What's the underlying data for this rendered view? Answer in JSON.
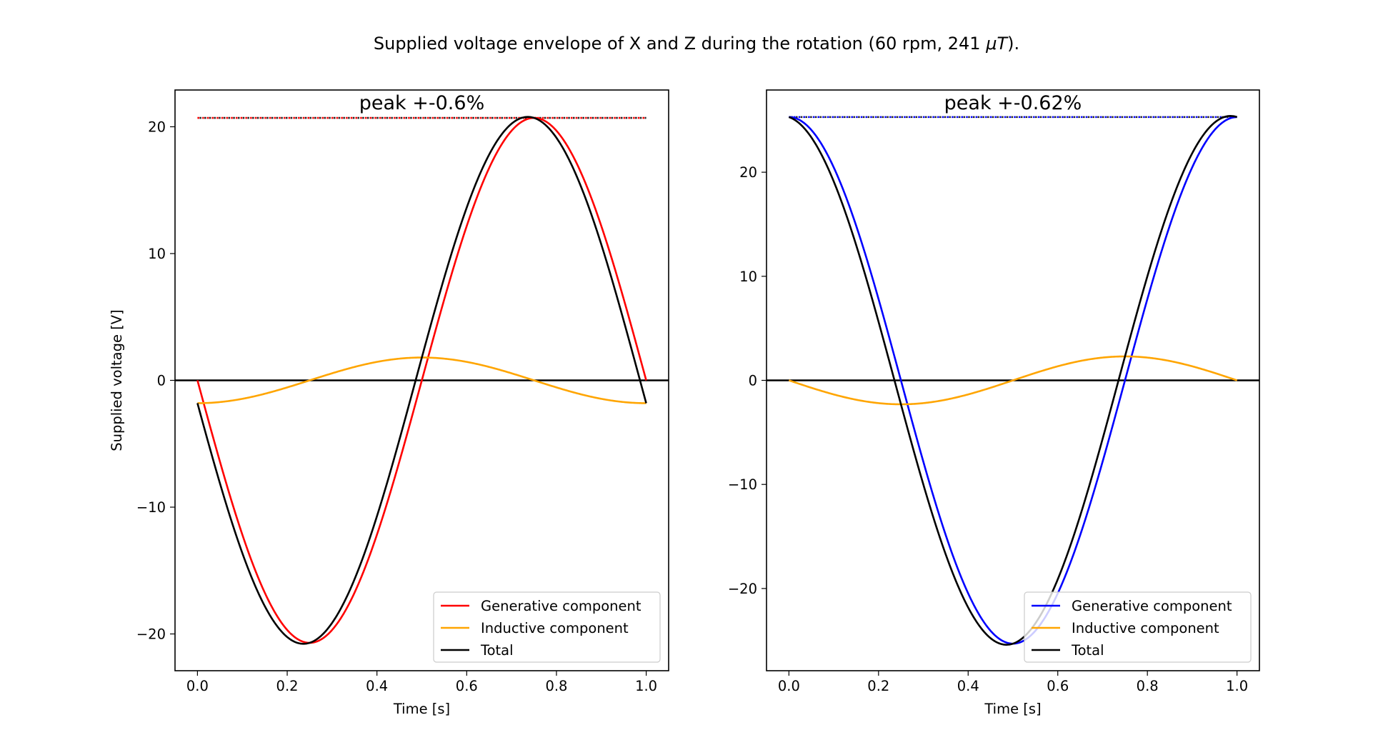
{
  "figure": {
    "suptitle_prefix": "Supplied voltage envelope of X and Z during the rotation (60 rpm, 241 ",
    "suptitle_unit": "μT",
    "suptitle_suffix": ")."
  },
  "chart_data": [
    {
      "type": "line",
      "xlabel": "Time [s]",
      "ylabel": "Supplied voltage [V]",
      "xlim": [
        -0.05,
        1.05
      ],
      "ylim": [
        -22.9,
        22.9
      ],
      "xticks": [
        0.0,
        0.2,
        0.4,
        0.6,
        0.8,
        1.0
      ],
      "xtick_labels": [
        "0.0",
        "0.2",
        "0.4",
        "0.6",
        "0.8",
        "1.0"
      ],
      "yticks": [
        -20,
        -10,
        0,
        10,
        20
      ],
      "ytick_labels": [
        "−20",
        "−10",
        "0",
        "10",
        "20"
      ],
      "grid": false,
      "legend_position": "lower-right",
      "annotation": "peak +-0.6%",
      "peak_value": 20.7,
      "zero_line": true,
      "series": [
        {
          "name": "Generative component",
          "color": "#ff0000",
          "function": "-A*sin(2*pi*t)",
          "amplitude": 20.7,
          "t_range": [
            0,
            1
          ]
        },
        {
          "name": "Inductive component",
          "color": "#ffa500",
          "function": "-A*cos(2*pi*t)",
          "amplitude": 1.8,
          "t_range": [
            0,
            1
          ]
        },
        {
          "name": "Total",
          "color": "#000000",
          "function": "generative + inductive",
          "t_range": [
            0,
            1
          ]
        }
      ]
    },
    {
      "type": "line",
      "xlabel": "Time [s]",
      "ylabel": "",
      "xlim": [
        -0.05,
        1.05
      ],
      "ylim": [
        -27.9,
        27.9
      ],
      "xticks": [
        0.0,
        0.2,
        0.4,
        0.6,
        0.8,
        1.0
      ],
      "xtick_labels": [
        "0.0",
        "0.2",
        "0.4",
        "0.6",
        "0.8",
        "1.0"
      ],
      "yticks": [
        -20,
        -10,
        0,
        10,
        20
      ],
      "ytick_labels": [
        "−20",
        "−10",
        "0",
        "10",
        "20"
      ],
      "grid": false,
      "legend_position": "lower-right",
      "annotation": "peak +-0.62%",
      "peak_value": 25.3,
      "zero_line": true,
      "series": [
        {
          "name": "Generative component",
          "color": "#0000ff",
          "function": "A*cos(2*pi*t)",
          "amplitude": 25.3,
          "t_range": [
            0,
            1
          ]
        },
        {
          "name": "Inductive component",
          "color": "#ffa500",
          "function": "-A*sin(2*pi*t)",
          "amplitude": 2.3,
          "t_range": [
            0,
            1
          ]
        },
        {
          "name": "Total",
          "color": "#000000",
          "function": "generative + inductive",
          "t_range": [
            0,
            1
          ]
        }
      ]
    }
  ]
}
